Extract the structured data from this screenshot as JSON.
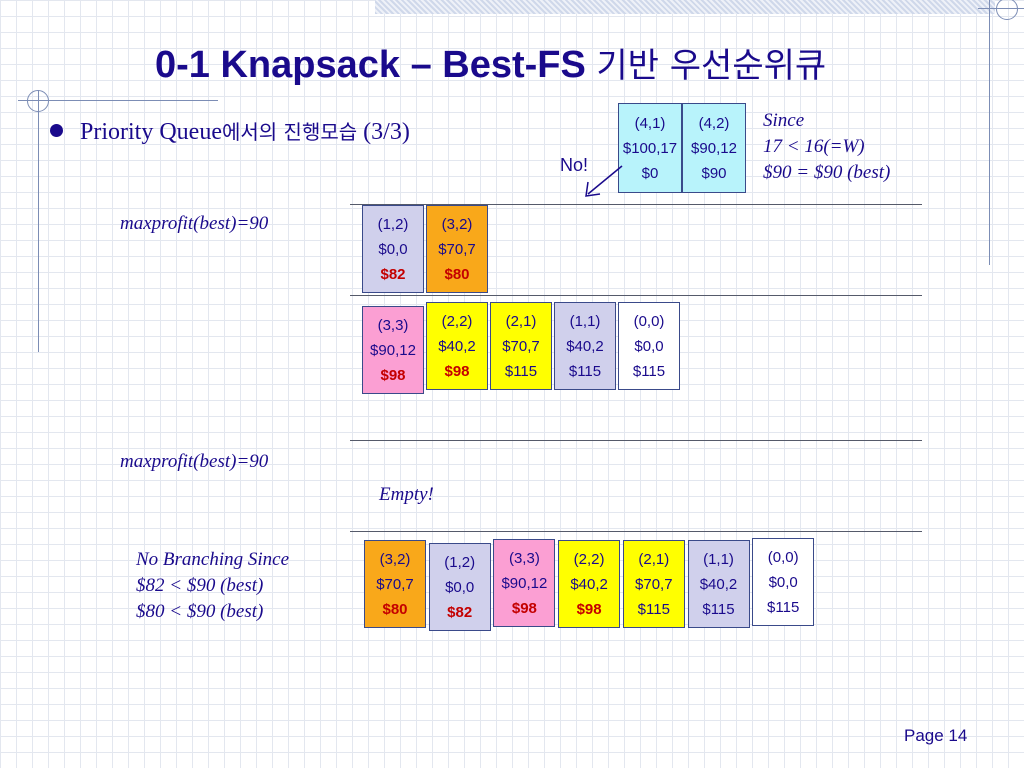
{
  "title": {
    "main": "0-1 Knapsack – Best-FS",
    "korean": "기반 우선순위큐"
  },
  "subtitle": {
    "prefix": "Priority Queue",
    "korean": "에서의 진행모습",
    "suffix": " (3/3)"
  },
  "no_label": "No!",
  "since_note": [
    "Since",
    "17 < 16(=W)",
    "$90 = $90 (best)"
  ],
  "maxprofit_1": "maxprofit(best)=90",
  "maxprofit_2": "maxprofit(best)=90",
  "empty_label": "Empty!",
  "no_branching": [
    "No Branching Since",
    "$82 < $90 (best)",
    "$80 < $90 (best)"
  ],
  "page_label": "Page 14",
  "colors": {
    "lavender": "#d0d0ec",
    "orange": "#f9a81a",
    "pink": "#fb9fd3",
    "yellow": "#ffff00",
    "white": "#ffffff",
    "cyan": "#b8f3fb",
    "red": "#c40000"
  },
  "top_nodes": [
    {
      "label": "(4,1)",
      "value": "$100,17",
      "bound": "$0",
      "color": "cyan"
    },
    {
      "label": "(4,2)",
      "value": "$90,12",
      "bound": "$90",
      "color": "cyan"
    }
  ],
  "queue_row_1": [
    {
      "label": "(1,2)",
      "value": "$0,0",
      "bound": "$82",
      "color": "lavender",
      "highlight": true
    },
    {
      "label": "(3,2)",
      "value": "$70,7",
      "bound": "$80",
      "color": "orange",
      "highlight": true
    }
  ],
  "queue_row_2": [
    {
      "label": "(3,3)",
      "value": "$90,12",
      "bound": "$98",
      "color": "pink",
      "highlight": true
    },
    {
      "label": "(2,2)",
      "value": "$40,2",
      "bound": "$98",
      "color": "yellow",
      "highlight": true
    },
    {
      "label": "(2,1)",
      "value": "$70,7",
      "bound": "$115",
      "color": "yellow",
      "highlight": false
    },
    {
      "label": "(1,1)",
      "value": "$40,2",
      "bound": "$115",
      "color": "lavender",
      "highlight": false
    },
    {
      "label": "(0,0)",
      "value": "$0,0",
      "bound": "$115",
      "color": "white",
      "highlight": false
    }
  ],
  "bottom_row": [
    {
      "label": "(3,2)",
      "value": "$70,7",
      "bound": "$80",
      "color": "orange",
      "highlight": true
    },
    {
      "label": "(1,2)",
      "value": "$0,0",
      "bound": "$82",
      "color": "lavender",
      "highlight": true
    },
    {
      "label": "(3,3)",
      "value": "$90,12",
      "bound": "$98",
      "color": "pink",
      "highlight": true
    },
    {
      "label": "(2,2)",
      "value": "$40,2",
      "bound": "$98",
      "color": "yellow",
      "highlight": true
    },
    {
      "label": "(2,1)",
      "value": "$70,7",
      "bound": "$115",
      "color": "yellow",
      "highlight": false
    },
    {
      "label": "(1,1)",
      "value": "$40,2",
      "bound": "$115",
      "color": "lavender",
      "highlight": false
    },
    {
      "label": "(0,0)",
      "value": "$0,0",
      "bound": "$115",
      "color": "white",
      "highlight": false
    }
  ]
}
